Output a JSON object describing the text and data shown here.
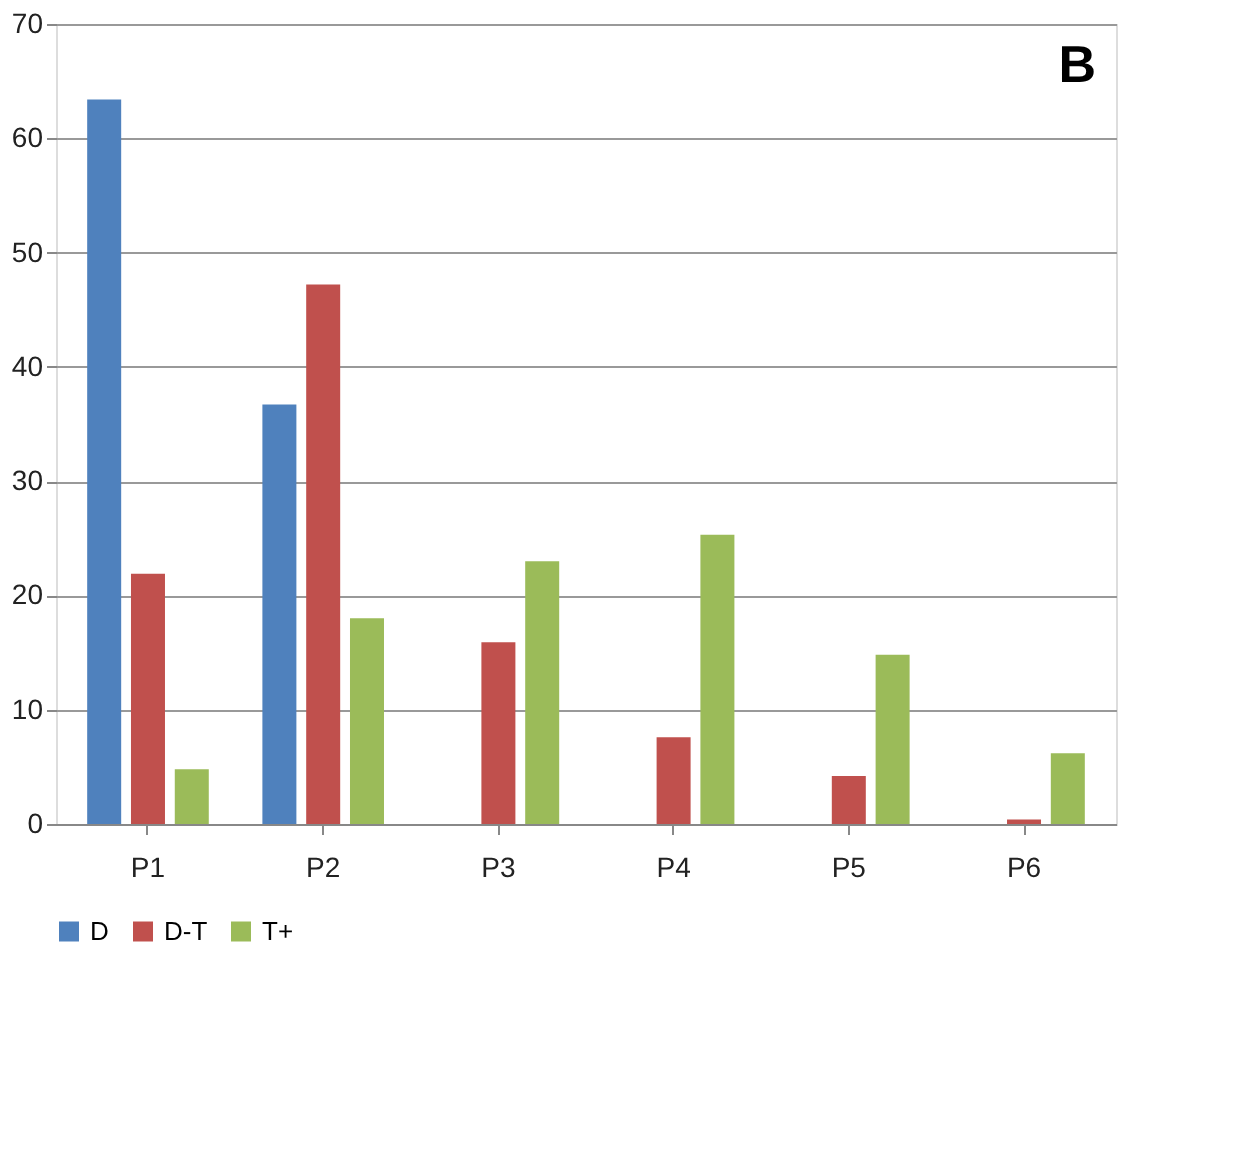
{
  "chart_data": {
    "type": "bar",
    "annotations": [
      "B"
    ],
    "categories": [
      "P1",
      "P2",
      "P3",
      "P4",
      "P5",
      "P6"
    ],
    "series": [
      {
        "name": "D",
        "color": "#4f81bd",
        "values": [
          63.4,
          36.7,
          0,
          0,
          0,
          0
        ]
      },
      {
        "name": "D-T",
        "color": "#c0504d",
        "values": [
          21.9,
          47.2,
          15.9,
          7.6,
          4.2,
          0.4
        ]
      },
      {
        "name": "T+",
        "color": "#9bbb59",
        "values": [
          4.8,
          18,
          23,
          25.3,
          14.8,
          6.2
        ]
      }
    ],
    "ylim": [
      0,
      70
    ],
    "yticks": [
      0,
      10,
      20,
      30,
      40,
      50,
      60,
      70
    ],
    "grid": "y",
    "legend": "bottom"
  }
}
